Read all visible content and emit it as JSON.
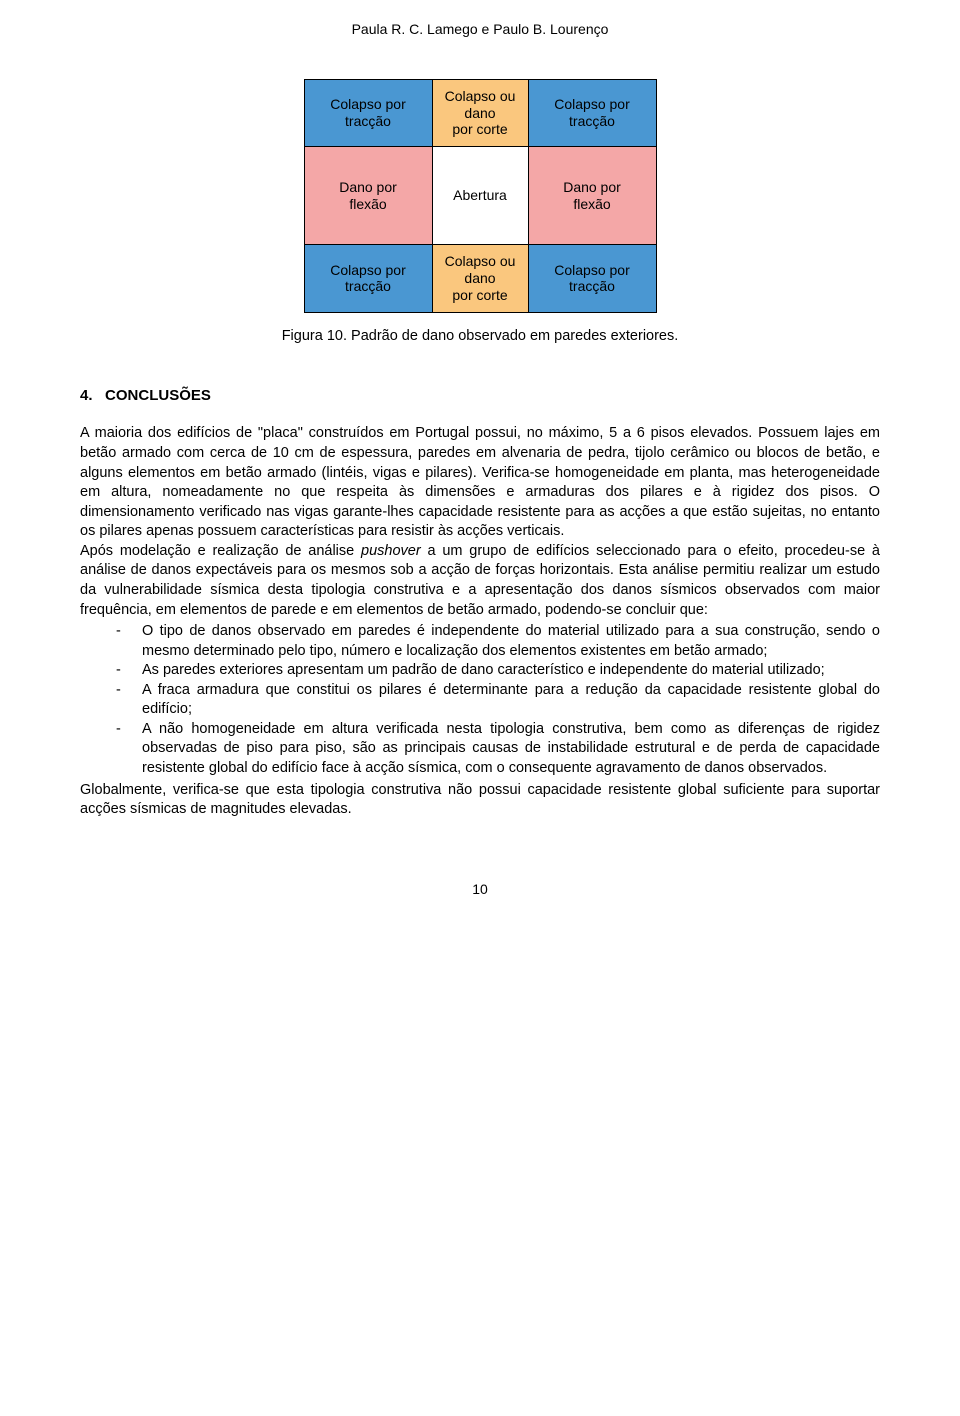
{
  "header": {
    "text": "Paula R. C. Lamego e Paulo B. Lourenço"
  },
  "diagram": {
    "colors": {
      "blue": "#4a97d2",
      "orange": "#fac77e",
      "pink": "#f4a7a7",
      "white": "#ffffff",
      "border": "#000000"
    },
    "rows": [
      [
        {
          "text": "Colapso por tracção",
          "bg": "blue",
          "w": "wide"
        },
        {
          "text": "Colapso ou dano por corte",
          "bg": "orange",
          "w": "narrow"
        },
        {
          "text": "Colapso por tracção",
          "bg": "blue",
          "w": "wide"
        }
      ],
      [
        {
          "text": "Dano por flexão",
          "bg": "pink",
          "w": "wide"
        },
        {
          "text": "Abertura",
          "bg": "white",
          "w": "narrow"
        },
        {
          "text": "Dano por flexão",
          "bg": "pink",
          "w": "wide"
        }
      ],
      [
        {
          "text": "Colapso por tracção",
          "bg": "blue",
          "w": "wide"
        },
        {
          "text": "Colapso ou dano por corte",
          "bg": "orange",
          "w": "narrow"
        },
        {
          "text": "Colapso por tracção",
          "bg": "blue",
          "w": "wide"
        }
      ]
    ]
  },
  "figure_caption": "Figura 10. Padrão de dano observado em paredes exteriores.",
  "section": {
    "number": "4.",
    "title": "CONCLUSÕES"
  },
  "para1_a": "A maioria dos edifícios de \"placa\" construídos em Portugal possui, no máximo, 5 a 6 pisos elevados. Possuem lajes em betão armado com cerca de 10 cm de espessura, paredes em alvenaria de pedra, tijolo cerâmico ou blocos de betão, e alguns elementos em betão armado (lintéis, vigas e pilares). Verifica-se homogeneidade em planta, mas heterogeneidade em altura, nomeadamente no que respeita às dimensões e armaduras dos pilares e à rigidez dos pisos. O dimensionamento verificado nas vigas garante-lhes capacidade resistente para as acções a que estão sujeitas, no entanto os pilares apenas possuem características para resistir às acções verticais.",
  "para1_b_pre": "Após modelação e realização de análise ",
  "para1_b_em": "pushover",
  "para1_b_post": " a um grupo de edifícios seleccionado para o efeito, procedeu-se à análise de danos expectáveis para os mesmos sob a acção de forças horizontais. Esta análise permitiu realizar um estudo da vulnerabilidade sísmica desta tipologia construtiva e a apresentação dos danos sísmicos observados com maior frequência, em elementos de parede e em elementos de betão armado, podendo-se concluir que:",
  "bullets": [
    "O tipo de danos observado em paredes é independente do material utilizado para a sua construção, sendo o mesmo determinado pelo tipo, número e localização dos elementos existentes em betão armado;",
    "As paredes exteriores apresentam um padrão de dano característico e independente do material utilizado;",
    "A fraca armadura que constitui os pilares é determinante para a redução da capacidade resistente global do edifício;",
    "A não homogeneidade em altura verificada nesta tipologia construtiva, bem como as diferenças de rigidez observadas de piso para piso, são as principais causas de instabilidade estrutural e de perda de capacidade resistente global do edifício face à acção sísmica, com o consequente agravamento de danos observados."
  ],
  "para2": "Globalmente, verifica-se que esta tipologia construtiva não possui capacidade resistente global suficiente para suportar acções sísmicas de magnitudes elevadas.",
  "page_number": "10"
}
